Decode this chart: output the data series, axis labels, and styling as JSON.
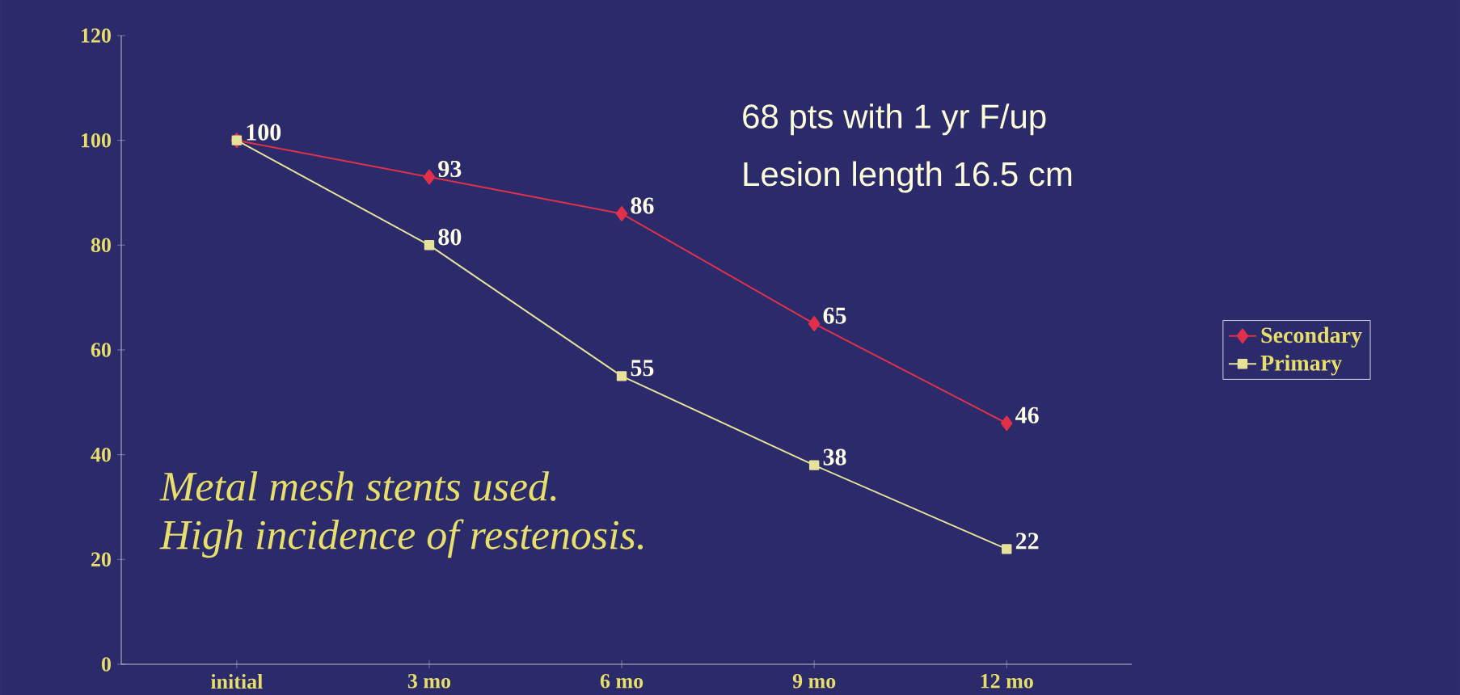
{
  "chart_data": {
    "type": "line",
    "categories": [
      "initial",
      "3 mo",
      "6 mo",
      "9 mo",
      "12 mo"
    ],
    "series": [
      {
        "name": "Secondary",
        "color": "#e0304a",
        "marker": "diamond",
        "values": [
          100,
          93,
          86,
          65,
          46
        ],
        "value_labels": [
          null,
          "93",
          "86",
          "65",
          "46"
        ]
      },
      {
        "name": "Primary",
        "color": "#e6e29a",
        "marker": "square",
        "values": [
          100,
          80,
          55,
          38,
          22
        ],
        "value_labels": [
          "100",
          "80",
          "55",
          "38",
          "22"
        ]
      }
    ],
    "ylim": [
      0,
      120
    ],
    "yticks": [
      0,
      20,
      40,
      60,
      80,
      100,
      120
    ],
    "legend": "right",
    "grid": false,
    "annotations": [
      "68 pts with 1 yr F/up",
      "Lesion length 16.5 cm",
      "Metal mesh stents used.",
      "High incidence of restenosis."
    ]
  }
}
